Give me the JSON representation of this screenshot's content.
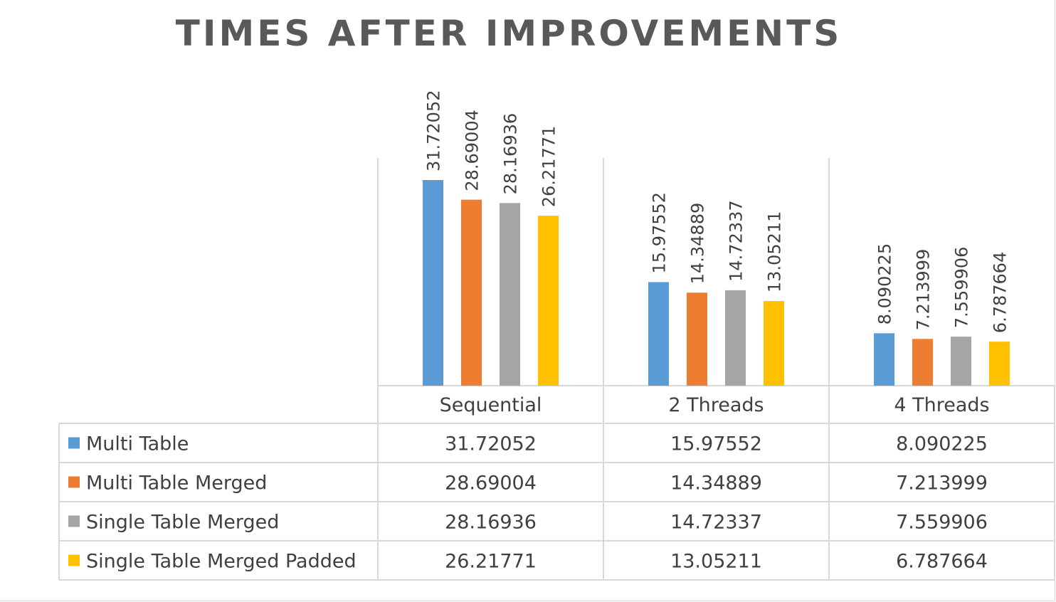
{
  "chart_data": {
    "type": "bar",
    "title": "TIMES AFTER IMPROVEMENTS",
    "categories": [
      "Sequential",
      "2 Threads",
      "4 Threads"
    ],
    "series": [
      {
        "name": "Multi Table",
        "values": [
          31.72052,
          15.97552,
          8.090225
        ],
        "labels": [
          "31.72052",
          "15.97552",
          "8.090225"
        ],
        "color": "#5b9bd5"
      },
      {
        "name": "Multi Table Merged",
        "values": [
          28.69004,
          14.34889,
          7.213999
        ],
        "labels": [
          "28.69004",
          "14.34889",
          "7.213999"
        ],
        "color": "#ed7d31"
      },
      {
        "name": "Single Table Merged",
        "values": [
          28.16936,
          14.72337,
          7.559906
        ],
        "labels": [
          "28.16936",
          "14.72337",
          "7.559906"
        ],
        "color": "#a5a5a5"
      },
      {
        "name": "Single Table Merged Padded",
        "values": [
          26.21771,
          13.05211,
          6.787664
        ],
        "labels": [
          "26.21771",
          "13.05211",
          "6.787664"
        ],
        "color": "#ffc000"
      }
    ],
    "ylim": [
      0,
      35
    ],
    "xlabel": "",
    "ylabel": "",
    "grid": false,
    "legend": "data-table"
  }
}
